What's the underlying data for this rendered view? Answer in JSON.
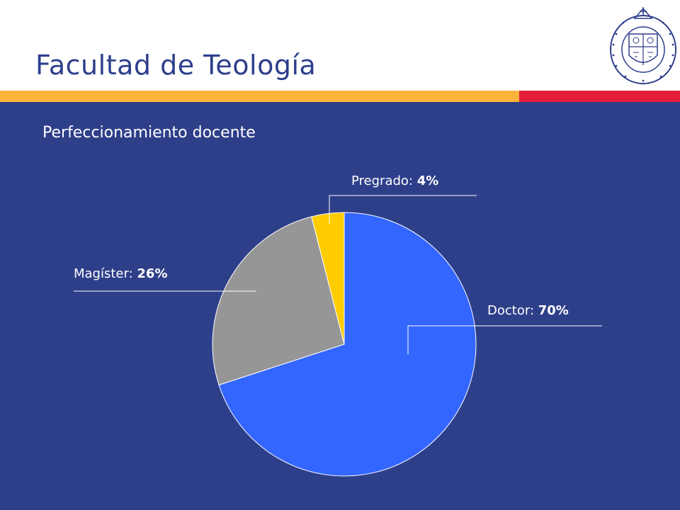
{
  "header": {
    "title": "Facultad de Teología",
    "logo_text": "PONTIFICIA UNIVERSIDAD CATÓLICA DE CHILE"
  },
  "colors": {
    "header_bg": "#ffffff",
    "title": "#2E3E8C",
    "stripe_yellow": "#FBB33B",
    "stripe_red": "#E41E3A",
    "main_bg": "#2E3F8A"
  },
  "chart_data": {
    "type": "pie",
    "title": "Perfeccionamiento docente",
    "slices": [
      {
        "label": "Doctor",
        "value": 70,
        "display": "70%",
        "color": "#3366FF"
      },
      {
        "label": "Magíster",
        "value": 26,
        "display": "26%",
        "color": "#969696"
      },
      {
        "label": "Pregrado",
        "value": 4,
        "display": "4%",
        "color": "#FFCC00"
      }
    ],
    "start": "12 o'clock",
    "direction": "clockwise"
  }
}
